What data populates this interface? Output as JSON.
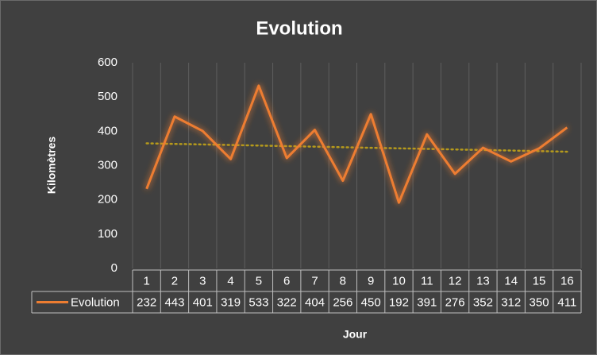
{
  "chart_data": {
    "type": "line",
    "title": "Evolution",
    "x_label": "Jour",
    "y_label": "Kilomètres",
    "categories": [
      1,
      2,
      3,
      4,
      5,
      6,
      7,
      8,
      9,
      10,
      11,
      12,
      13,
      14,
      15,
      16
    ],
    "series": [
      {
        "name": "Evolution",
        "color": "#ed7d31",
        "values": [
          232,
          443,
          401,
          319,
          533,
          322,
          404,
          256,
          450,
          192,
          391,
          276,
          352,
          312,
          350,
          411
        ]
      }
    ],
    "ylim": [
      0,
      600
    ],
    "yticks": [
      0,
      100,
      200,
      300,
      400,
      500,
      600
    ],
    "trendline": {
      "kind": "linear",
      "color": "#b59a1c"
    },
    "data_table": true,
    "vertical_grid": true
  }
}
